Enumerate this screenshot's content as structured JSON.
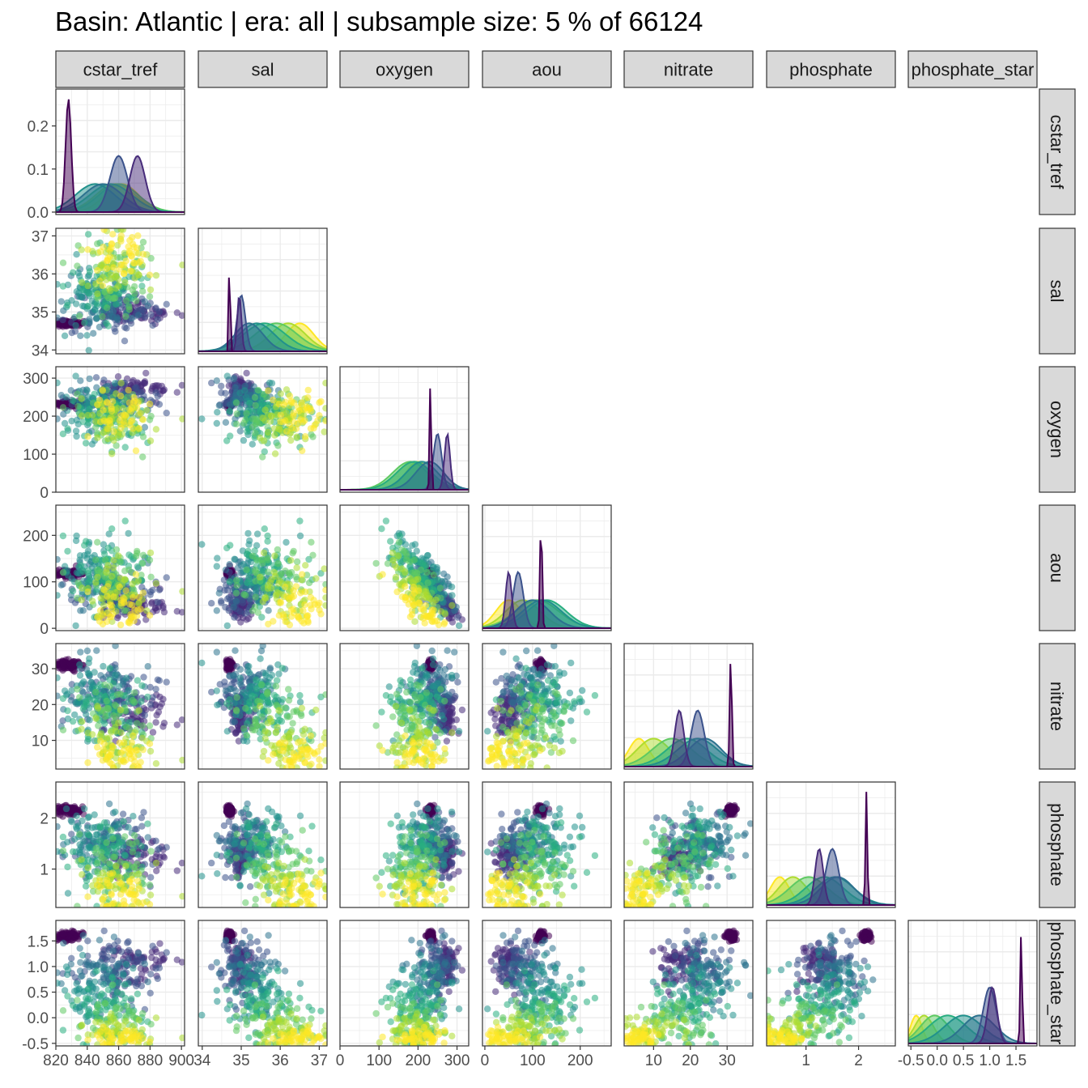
{
  "title": "Basin: Atlantic | era: all | subsample size: 5 % of 66124",
  "chart_data": {
    "type": "scatter",
    "layout": "pairs-matrix-lower-triangle",
    "diagonal": "density",
    "color_scale": "viridis",
    "variables": [
      "cstar_tref",
      "sal",
      "oxygen",
      "aou",
      "nitrate",
      "phosphate",
      "phosphate_star"
    ],
    "variable_labels": [
      "cstar_tref",
      "sal",
      "oxygen",
      "aou",
      "nitrate",
      "phosphate",
      "phosphate_star"
    ],
    "ranges": {
      "cstar_tref": [
        820,
        902
      ],
      "sal": [
        33.9,
        37.2
      ],
      "oxygen": [
        0,
        330
      ],
      "aou": [
        -5,
        265
      ],
      "nitrate": [
        2,
        37
      ],
      "phosphate": [
        0.25,
        2.7
      ],
      "phosphate_star": [
        -0.55,
        1.9
      ]
    },
    "x_ticks": {
      "cstar_tref": [
        {
          "v": 820,
          "label": "820"
        },
        {
          "v": 840,
          "label": "840"
        },
        {
          "v": 860,
          "label": "860"
        },
        {
          "v": 880,
          "label": "880"
        },
        {
          "v": 900,
          "label": "900"
        }
      ],
      "sal": [
        {
          "v": 34,
          "label": "34"
        },
        {
          "v": 35,
          "label": "35"
        },
        {
          "v": 36,
          "label": "36"
        },
        {
          "v": 37,
          "label": "37"
        }
      ],
      "oxygen": [
        {
          "v": 0,
          "label": "0"
        },
        {
          "v": 100,
          "label": "100"
        },
        {
          "v": 200,
          "label": "200"
        },
        {
          "v": 300,
          "label": "300"
        }
      ],
      "aou": [
        {
          "v": 0,
          "label": "0"
        },
        {
          "v": 100,
          "label": "100"
        },
        {
          "v": 200,
          "label": "200"
        }
      ],
      "nitrate": [
        {
          "v": 10,
          "label": "10"
        },
        {
          "v": 20,
          "label": "20"
        },
        {
          "v": 30,
          "label": "30"
        }
      ],
      "phosphate": [
        {
          "v": 1,
          "label": "1"
        },
        {
          "v": 2,
          "label": "2"
        }
      ],
      "phosphate_star": [
        {
          "v": -0.5,
          "label": "-0.5"
        },
        {
          "v": 0,
          "label": "0.0"
        },
        {
          "v": 0.5,
          "label": "0.5"
        },
        {
          "v": 1,
          "label": "1.0"
        },
        {
          "v": 1.5,
          "label": "1.5"
        }
      ]
    },
    "y_ticks": {
      "cstar_tref": [
        {
          "v": 0,
          "label": "0.0"
        },
        {
          "v": 0.1,
          "label": "0.1"
        },
        {
          "v": 0.2,
          "label": "0.2"
        }
      ],
      "sal": [
        {
          "v": 34,
          "label": "34"
        },
        {
          "v": 35,
          "label": "35"
        },
        {
          "v": 36,
          "label": "36"
        },
        {
          "v": 37,
          "label": "37"
        }
      ],
      "oxygen": [
        {
          "v": 0,
          "label": "0"
        },
        {
          "v": 100,
          "label": "100"
        },
        {
          "v": 200,
          "label": "200"
        },
        {
          "v": 300,
          "label": "300"
        }
      ],
      "aou": [
        {
          "v": 0,
          "label": "0"
        },
        {
          "v": 100,
          "label": "100"
        },
        {
          "v": 200,
          "label": "200"
        }
      ],
      "nitrate": [
        {
          "v": 10,
          "label": "10"
        },
        {
          "v": 20,
          "label": "20"
        },
        {
          "v": 30,
          "label": "30"
        }
      ],
      "phosphate": [
        {
          "v": 1,
          "label": "1"
        },
        {
          "v": 2,
          "label": "2"
        }
      ],
      "phosphate_star": [
        {
          "v": -0.5,
          "label": "-0.5"
        },
        {
          "v": 0,
          "label": "0.0"
        },
        {
          "v": 0.5,
          "label": "0.5"
        },
        {
          "v": 1,
          "label": "1.0"
        },
        {
          "v": 1.5,
          "label": "1.5"
        }
      ]
    },
    "density_ylim_first_panel": [
      0,
      0.28
    ],
    "density_peaks_first_panel": [
      {
        "x": 836,
        "y": 0.27,
        "color": "#440154"
      },
      {
        "x": 856,
        "y": 0.135,
        "color": "#3b528b"
      },
      {
        "x": 848,
        "y": 0.058,
        "color": "#472f7d"
      },
      {
        "x": 868,
        "y": 0.04,
        "color": "#21918c"
      }
    ],
    "grid": true,
    "legend": "none"
  }
}
